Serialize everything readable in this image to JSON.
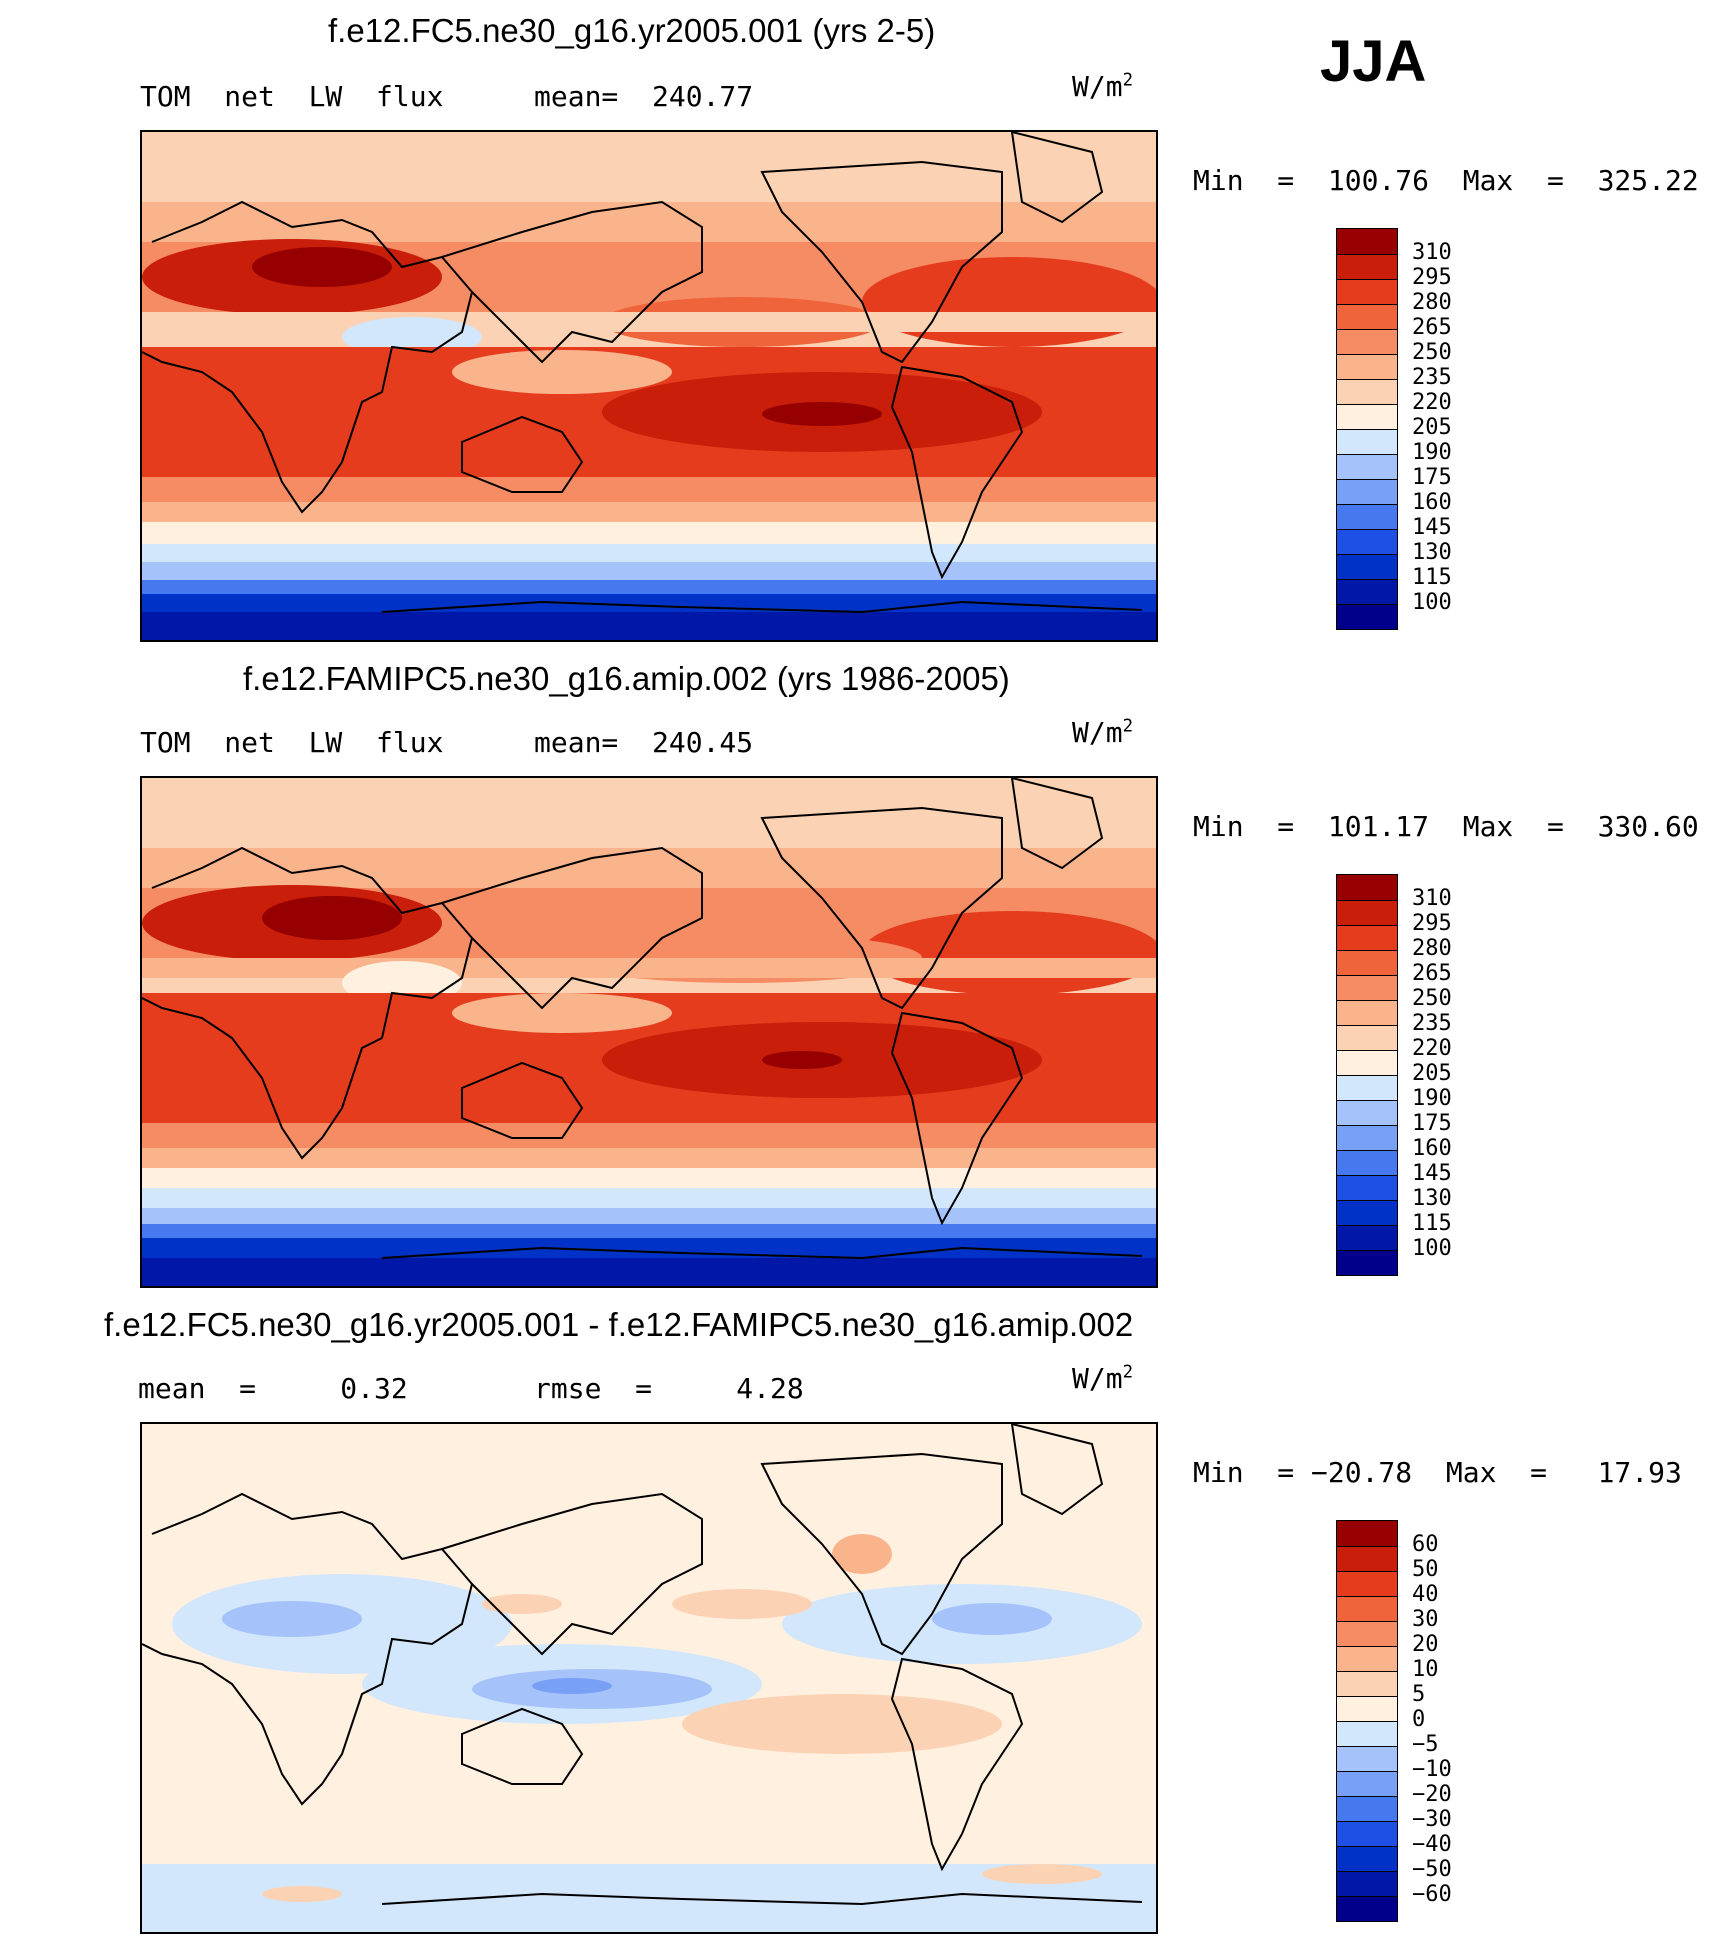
{
  "season": "JJA",
  "units_base": "W/m",
  "units_exp": "2",
  "palettes": {
    "abs": [
      "#00008b",
      "#0018a8",
      "#0032c8",
      "#1e50e6",
      "#4678f0",
      "#78a0f5",
      "#a5c3fa",
      "#d2e6fc",
      "#fff0e0",
      "#fcd2b4",
      "#fab48c",
      "#f58c64",
      "#f0643c",
      "#e63c1e",
      "#c81e0a",
      "#960000"
    ],
    "diff": [
      "#00008b",
      "#0018a8",
      "#0032c8",
      "#1e50e6",
      "#4678f0",
      "#78a0f5",
      "#a5c3fa",
      "#d2e6fc",
      "#fff0e0",
      "#fcd2b4",
      "#fab48c",
      "#f58c64",
      "#f0643c",
      "#e63c1e",
      "#c81e0a",
      "#960000"
    ]
  },
  "panels": [
    {
      "title": "f.e12.FC5.ne30_g16.yr2005.001 (yrs 2-5)",
      "left_text": "TOM  net  LW  flux",
      "mid_text": "mean=  240.77",
      "minmax": "Min  =  100.76  Max  =  325.22",
      "palette": "abs",
      "levels": [
        "310",
        "295",
        "280",
        "265",
        "250",
        "235",
        "220",
        "205",
        "190",
        "175",
        "160",
        "145",
        "130",
        "115",
        "100"
      ]
    },
    {
      "title": "f.e12.FAMIPC5.ne30_g16.amip.002 (yrs 1986-2005)",
      "left_text": "TOM  net  LW  flux",
      "mid_text": "mean=  240.45",
      "minmax": "Min  =  101.17  Max  =  330.60",
      "palette": "abs",
      "levels": [
        "310",
        "295",
        "280",
        "265",
        "250",
        "235",
        "220",
        "205",
        "190",
        "175",
        "160",
        "145",
        "130",
        "115",
        "100"
      ]
    },
    {
      "title": "f.e12.FC5.ne30_g16.yr2005.001 - f.e12.FAMIPC5.ne30_g16.amip.002",
      "left_text": "mean  =     0.32",
      "mid_text": "rmse  =     4.28",
      "minmax": "Min  = −20.78  Max  =   17.93",
      "palette": "diff",
      "levels": [
        "60",
        "50",
        "40",
        "30",
        "20",
        "10",
        "5",
        "0",
        "−5",
        "−10",
        "−20",
        "−30",
        "−40",
        "−50",
        "−60"
      ]
    }
  ]
}
